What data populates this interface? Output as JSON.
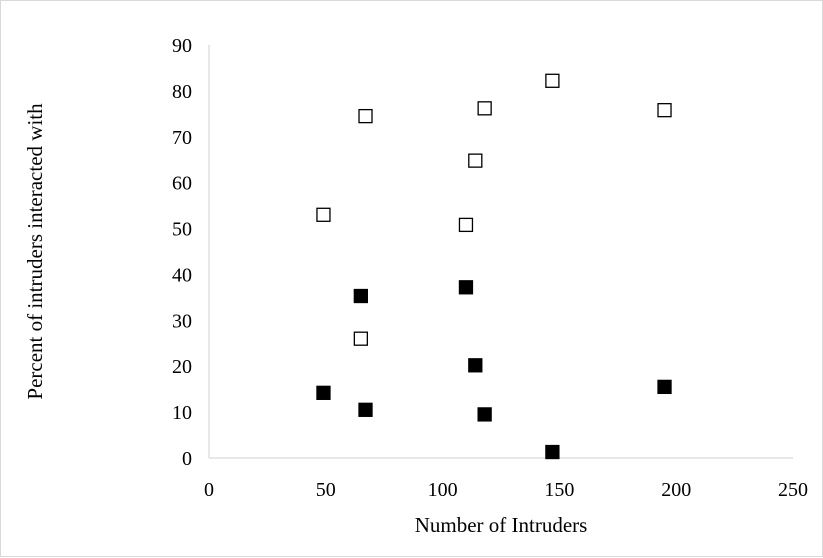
{
  "chart_data": {
    "type": "scatter",
    "title": "",
    "xlabel": "Number of Intruders",
    "ylabel": "Percent of intruders interacted with",
    "xlim": [
      0,
      250
    ],
    "ylim": [
      0,
      90
    ],
    "x_ticks": [
      0,
      50,
      100,
      150,
      200,
      250
    ],
    "y_ticks": [
      0,
      10,
      20,
      30,
      40,
      50,
      60,
      70,
      80,
      90
    ],
    "grid": false,
    "legend": "none",
    "series": [
      {
        "marker": "open-square",
        "color": "#000000",
        "points": [
          {
            "x": 49,
            "y": 53
          },
          {
            "x": 65,
            "y": 26
          },
          {
            "x": 67,
            "y": 74.5
          },
          {
            "x": 110,
            "y": 50.8
          },
          {
            "x": 114,
            "y": 64.8
          },
          {
            "x": 118,
            "y": 76.2
          },
          {
            "x": 147,
            "y": 82.2
          },
          {
            "x": 195,
            "y": 75.8
          }
        ]
      },
      {
        "marker": "filled-square",
        "color": "#000000",
        "points": [
          {
            "x": 49,
            "y": 14.2
          },
          {
            "x": 65,
            "y": 35.3
          },
          {
            "x": 67,
            "y": 10.5
          },
          {
            "x": 110,
            "y": 37.2
          },
          {
            "x": 114,
            "y": 20.2
          },
          {
            "x": 118,
            "y": 9.5
          },
          {
            "x": 147,
            "y": 1.3
          },
          {
            "x": 195,
            "y": 15.5
          }
        ]
      }
    ]
  }
}
